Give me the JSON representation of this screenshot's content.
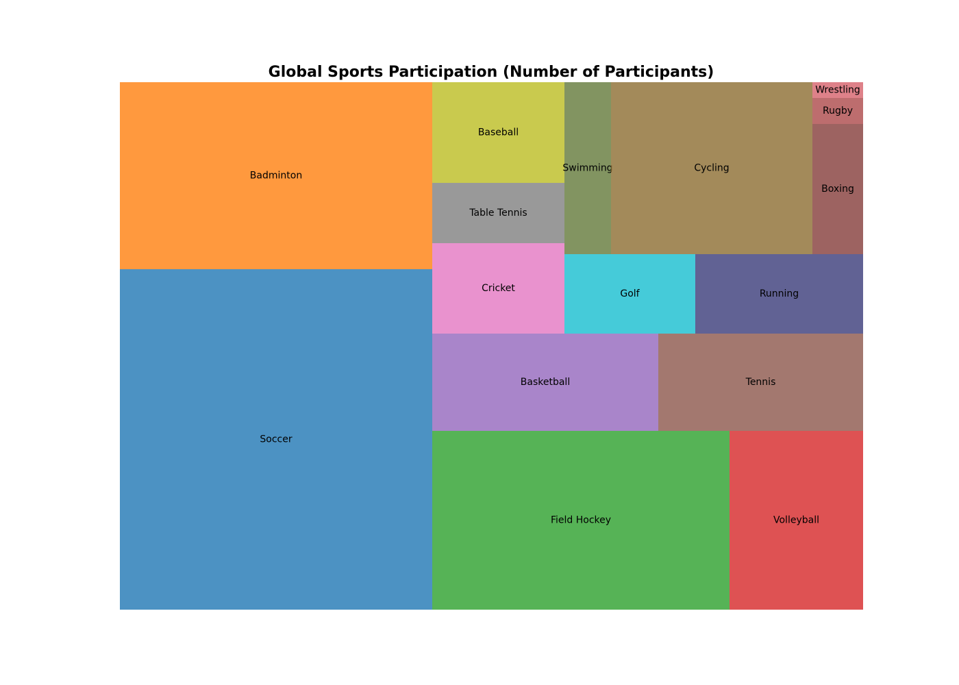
{
  "chart_data": {
    "type": "treemap",
    "title": "Global Sports Participation (Number of Participants)",
    "items": [
      {
        "label": "Soccer",
        "value": 36,
        "color": "#1f77b4"
      },
      {
        "label": "Badminton",
        "value": 20,
        "color": "#ff7f0e"
      },
      {
        "label": "Field Hockey",
        "value": 18,
        "color": "#2ca02c"
      },
      {
        "label": "Volleyball",
        "value": 8,
        "color": "#d62728"
      },
      {
        "label": "Basketball",
        "value": 7.5,
        "color": "#9467bd"
      },
      {
        "label": "Tennis",
        "value": 6.8,
        "color": "#8c564b"
      },
      {
        "label": "Cricket",
        "value": 4.1,
        "color": "#e377c2"
      },
      {
        "label": "Table Tennis",
        "value": 2.7,
        "color": "#7f7f7f"
      },
      {
        "label": "Baseball",
        "value": 4.6,
        "color": "#bcbd22"
      },
      {
        "label": "Golf",
        "value": 3.5,
        "color": "#17becf"
      },
      {
        "label": "Running",
        "value": 4.5,
        "color": "#393b79"
      },
      {
        "label": "Swimming",
        "value": 2.7,
        "color": "#637939"
      },
      {
        "label": "Cycling",
        "value": 11.7,
        "color": "#8c6d31"
      },
      {
        "label": "Boxing",
        "value": 2.2,
        "color": "#843c39"
      },
      {
        "label": "Rugby",
        "value": 0.45,
        "color": "#ad494a"
      },
      {
        "label": "Wrestling",
        "value": 0.27,
        "color": "#d6616b"
      }
    ]
  }
}
